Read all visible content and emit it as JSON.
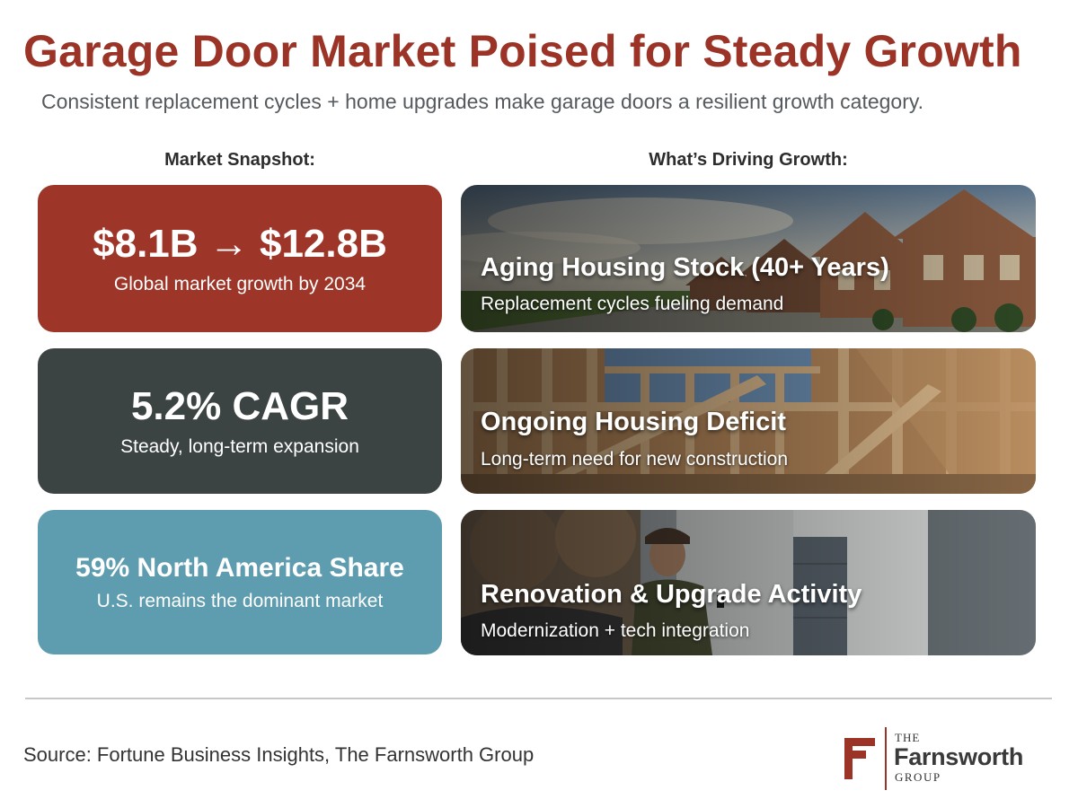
{
  "title": "Garage Door Market Poised for Steady Growth",
  "subtitle": "Consistent replacement cycles + home upgrades make garage doors a resilient growth category.",
  "left_heading": "Market Snapshot:",
  "right_heading": "What’s Driving Growth:",
  "snapshot": [
    {
      "headline": "$8.1B → $12.8B",
      "caption": "Global market growth by 2034",
      "color": "#9d3628"
    },
    {
      "headline": "5.2% CAGR",
      "caption": "Steady, long-term expansion",
      "color": "#3c4443"
    },
    {
      "headline": "59% North America Share",
      "caption": "U.S. remains the dominant market",
      "color": "#5e9caf"
    }
  ],
  "drivers": [
    {
      "title": "Aging Housing Stock (40+ Years)",
      "caption": "Replacement cycles fueling demand",
      "image": "suburban-houses-photo"
    },
    {
      "title": "Ongoing Housing Deficit",
      "caption": "Long-term need for new construction",
      "image": "wood-framing-construction-photo"
    },
    {
      "title": "Renovation & Upgrade Activity",
      "caption": "Modernization + tech integration",
      "image": "man-garage-door-remote-photo"
    }
  ],
  "source": "Source: Fortune Business Insights, The Farnsworth Group",
  "logo": {
    "the": "THE",
    "name": "Farnsworth",
    "group": "GROUP",
    "brand_color": "#9b3327"
  }
}
